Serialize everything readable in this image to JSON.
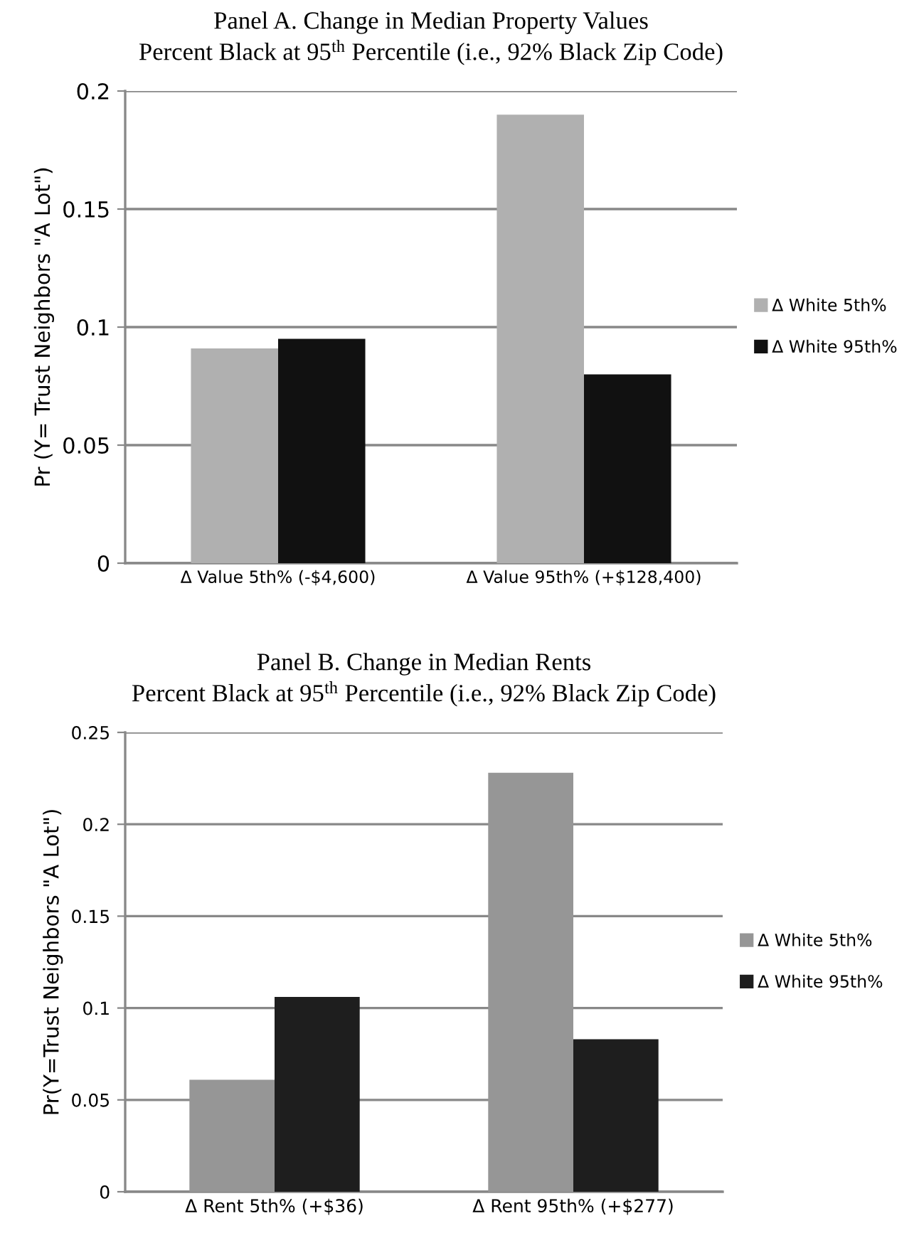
{
  "chart_data": [
    {
      "type": "bar",
      "title": "Panel A. Change in Median Property Values",
      "subtitle": "Percent Black at 95$^{th}$ Percentile (i.e., 92% Black Zip Code)",
      "ylabel": "Pr (Y= Trust Neighbors \"A Lot\")",
      "categories": [
        "Δ Value 5th% (-$4,600)",
        "Δ Value 95th% (+$128,400)"
      ],
      "series": [
        {
          "name": "Δ White 5th%",
          "color": "#b0b0b0",
          "values": [
            0.091,
            0.19
          ]
        },
        {
          "name": "Δ White 95th%",
          "color": "#111111",
          "values": [
            0.095,
            0.08
          ]
        }
      ],
      "ylim": [
        0,
        0.2
      ],
      "yticks": [
        0,
        0.05,
        0.1,
        0.15,
        0.2
      ],
      "grid": "y",
      "legend": "right"
    },
    {
      "type": "bar",
      "title": "Panel B. Change in Median Rents",
      "subtitle": "Percent Black at 95$^{th}$ Percentile (i.e., 92% Black Zip Code)",
      "ylabel": "Pr(Y=Trust Neighbors \"A Lot\")",
      "categories": [
        "Δ Rent 5th% (+$36)",
        "Δ Rent 95th% (+$277)"
      ],
      "series": [
        {
          "name": "Δ White 5th%",
          "color": "#969696",
          "values": [
            0.061,
            0.228
          ]
        },
        {
          "name": "Δ White 95th%",
          "color": "#1e1e1e",
          "values": [
            0.106,
            0.083
          ]
        }
      ],
      "ylim": [
        0,
        0.25
      ],
      "yticks": [
        0,
        0.05,
        0.1,
        0.15,
        0.2,
        0.25
      ],
      "grid": "y",
      "legend": "right"
    }
  ]
}
